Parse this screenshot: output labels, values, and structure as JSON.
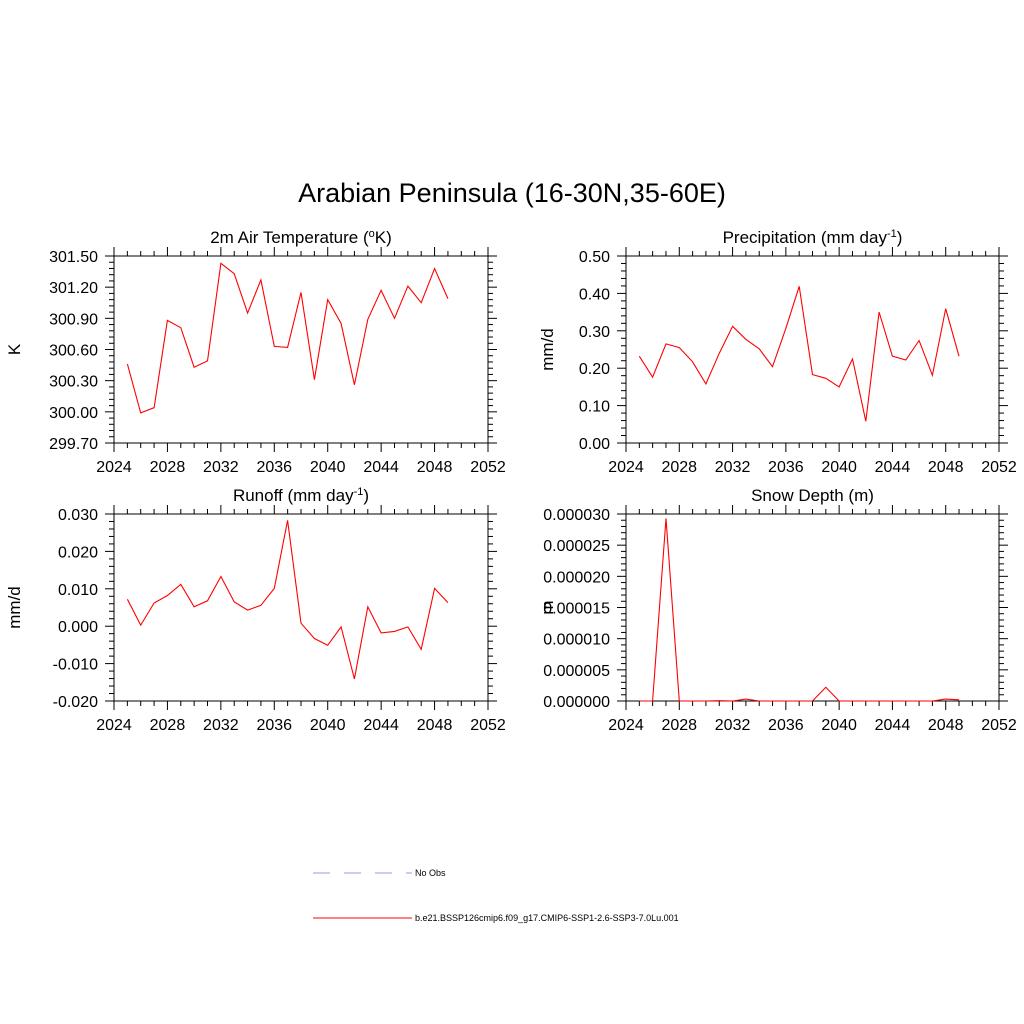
{
  "title": "Arabian Peninsula (16-30N,35-60E)",
  "legend": [
    {
      "label": "No Obs",
      "color": "#9999dd",
      "style": "dashed"
    },
    {
      "label": "b.e21.BSSP126cmip6.f09_g17.CMIP6-SSP1-2.6-SSP3-7.0Lu.001",
      "color": "#ff0000",
      "style": "solid"
    }
  ],
  "chart_data": [
    {
      "type": "line",
      "title_main": "2m Air Temperature (",
      "title_sup": "o",
      "title_tail": "K)",
      "ylabel": "K",
      "xlim": [
        2024,
        2052
      ],
      "x_ticks": [
        "2024",
        "2028",
        "2032",
        "2036",
        "2040",
        "2044",
        "2048",
        "2052"
      ],
      "ylim": [
        299.7,
        301.5
      ],
      "y_ticks": [
        "299.70",
        "300.00",
        "300.30",
        "300.60",
        "300.90",
        "301.20",
        "301.50"
      ],
      "color": "#ff0000",
      "x": [
        2025,
        2026,
        2027,
        2028,
        2029,
        2030,
        2031,
        2032,
        2033,
        2034,
        2035,
        2036,
        2037,
        2038,
        2039,
        2040,
        2041,
        2042,
        2043,
        2044,
        2045,
        2046,
        2047,
        2048,
        2049
      ],
      "y": [
        300.46,
        299.99,
        300.04,
        300.88,
        300.81,
        300.43,
        300.49,
        301.43,
        301.33,
        300.95,
        301.27,
        300.63,
        300.62,
        301.15,
        300.31,
        301.08,
        300.85,
        300.26,
        300.89,
        301.17,
        300.9,
        301.21,
        301.05,
        301.38,
        301.09
      ]
    },
    {
      "type": "line",
      "title_main": "Precipitation (mm day",
      "title_sup": "-1",
      "title_tail": ")",
      "ylabel": "mm/d",
      "xlim": [
        2024,
        2052
      ],
      "x_ticks": [
        "2024",
        "2028",
        "2032",
        "2036",
        "2040",
        "2044",
        "2048",
        "2052"
      ],
      "ylim": [
        0,
        0.5
      ],
      "y_ticks": [
        "0.00",
        "0.10",
        "0.20",
        "0.30",
        "0.40",
        "0.50"
      ],
      "color": "#ff0000",
      "x": [
        2025,
        2026,
        2027,
        2028,
        2029,
        2030,
        2031,
        2032,
        2033,
        2034,
        2035,
        2036,
        2037,
        2038,
        2039,
        2040,
        2041,
        2042,
        2043,
        2044,
        2045,
        2046,
        2047,
        2048,
        2049
      ],
      "y": [
        0.232,
        0.176,
        0.265,
        0.255,
        0.217,
        0.158,
        0.24,
        0.312,
        0.277,
        0.252,
        0.204,
        0.307,
        0.419,
        0.183,
        0.173,
        0.15,
        0.225,
        0.058,
        0.35,
        0.232,
        0.222,
        0.274,
        0.181,
        0.359,
        0.232
      ]
    },
    {
      "type": "line",
      "title_main": "Runoff (mm day",
      "title_sup": "-1",
      "title_tail": ")",
      "ylabel": "mm/d",
      "xlim": [
        2024,
        2052
      ],
      "x_ticks": [
        "2024",
        "2028",
        "2032",
        "2036",
        "2040",
        "2044",
        "2048",
        "2052"
      ],
      "ylim": [
        -0.02,
        0.03
      ],
      "y_ticks": [
        "-0.020",
        "-0.010",
        "0.000",
        "0.010",
        "0.020",
        "0.030"
      ],
      "color": "#ff0000",
      "x": [
        2025,
        2026,
        2027,
        2028,
        2029,
        2030,
        2031,
        2032,
        2033,
        2034,
        2035,
        2036,
        2037,
        2038,
        2039,
        2040,
        2041,
        2042,
        2043,
        2044,
        2045,
        2046,
        2047,
        2048,
        2049
      ],
      "y": [
        0.0072,
        0.0003,
        0.0062,
        0.0082,
        0.0112,
        0.0052,
        0.0068,
        0.0133,
        0.0065,
        0.0043,
        0.0056,
        0.0101,
        0.0283,
        0.0008,
        -0.0033,
        -0.0051,
        -0.0002,
        -0.0141,
        0.0052,
        -0.0018,
        -0.0014,
        -0.0002,
        -0.0062,
        0.0101,
        0.0063
      ]
    },
    {
      "type": "line",
      "title_main": "Snow Depth (m)",
      "title_sup": "",
      "title_tail": "",
      "ylabel": "m",
      "xlim": [
        2024,
        2052
      ],
      "x_ticks": [
        "2024",
        "2028",
        "2032",
        "2036",
        "2040",
        "2044",
        "2048",
        "2052"
      ],
      "ylim": [
        0,
        3e-05
      ],
      "y_ticks": [
        "0.000000",
        "0.000005",
        "0.000010",
        "0.000015",
        "0.000020",
        "0.000025",
        "0.000030"
      ],
      "color": "#ff0000",
      "x": [
        2025,
        2026,
        2027,
        2028,
        2029,
        2030,
        2031,
        2032,
        2033,
        2034,
        2035,
        2036,
        2037,
        2038,
        2039,
        2040,
        2041,
        2042,
        2043,
        2044,
        2045,
        2046,
        2047,
        2048,
        2049
      ],
      "y": [
        0,
        0,
        2.93e-05,
        0,
        0,
        0,
        5e-08,
        0,
        3e-07,
        0,
        0,
        0,
        0,
        0,
        2.2e-06,
        0,
        0,
        0,
        0,
        0,
        0,
        0,
        0,
        3e-07,
        2e-07
      ]
    }
  ]
}
